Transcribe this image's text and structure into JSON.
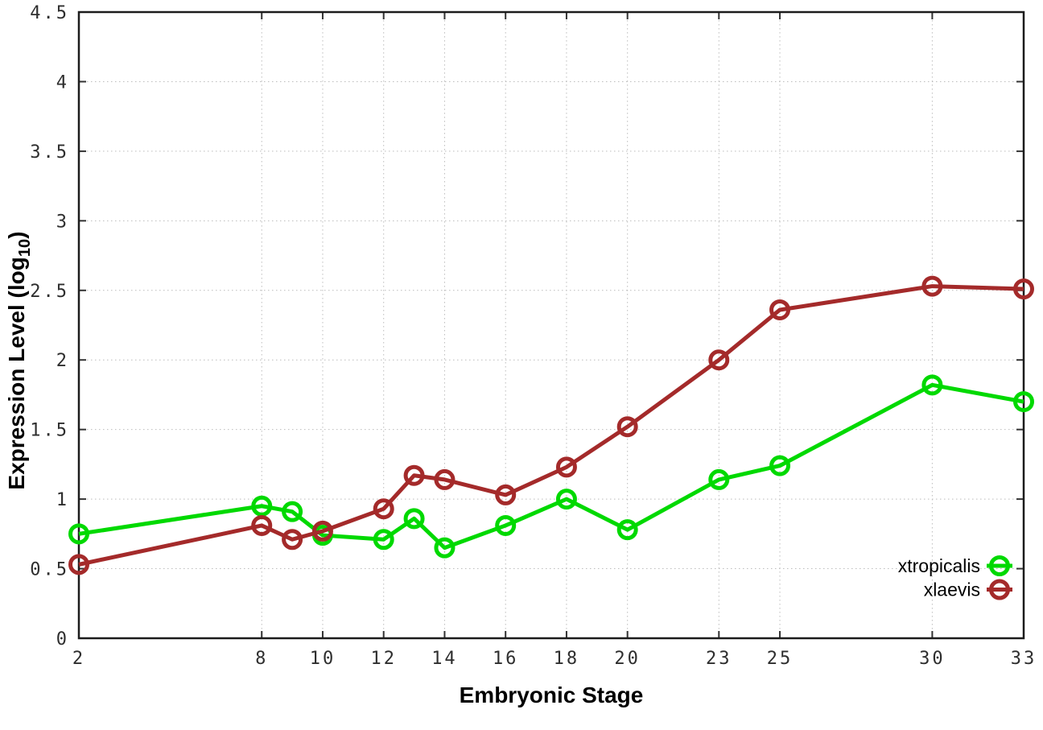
{
  "chart_data": {
    "type": "line",
    "xlabel": "Embryonic Stage",
    "ylabel": "Expression Level (log10)",
    "ylabel_parts": {
      "prefix": "Expression Level (log",
      "sub": "10",
      "suffix": ")"
    },
    "xlim": [
      2,
      33
    ],
    "ylim": [
      0,
      4.5
    ],
    "grid": true,
    "legend_position": "inside-bottom-right",
    "xticks": [
      2,
      8,
      10,
      12,
      14,
      16,
      18,
      20,
      23,
      25,
      30,
      33
    ],
    "xtick_labels": [
      "2",
      "8",
      "10",
      "12",
      "14",
      "16",
      "18",
      "20",
      "23",
      "25",
      "30",
      "33"
    ],
    "yticks": [
      0,
      0.5,
      1,
      1.5,
      2,
      2.5,
      3,
      3.5,
      4,
      4.5
    ],
    "ytick_labels": [
      "0",
      "0.5",
      "1",
      "1.5",
      "2",
      "2.5",
      "3",
      "3.5",
      "4",
      "4.5"
    ],
    "x": [
      2,
      8,
      9,
      10,
      12,
      13,
      14,
      16,
      18,
      20,
      23,
      25,
      30,
      33
    ],
    "series": [
      {
        "name": "xtropicalis",
        "color": "#00d900",
        "values": [
          0.75,
          0.95,
          0.91,
          0.74,
          0.71,
          0.86,
          0.65,
          0.81,
          1.0,
          0.78,
          1.14,
          1.24,
          1.82,
          1.7
        ]
      },
      {
        "name": "xlaevis",
        "color": "#a42a2a",
        "values": [
          0.53,
          0.81,
          0.71,
          0.77,
          0.93,
          1.17,
          1.14,
          1.03,
          1.23,
          1.52,
          2.0,
          2.36,
          2.53,
          2.51
        ]
      }
    ]
  }
}
